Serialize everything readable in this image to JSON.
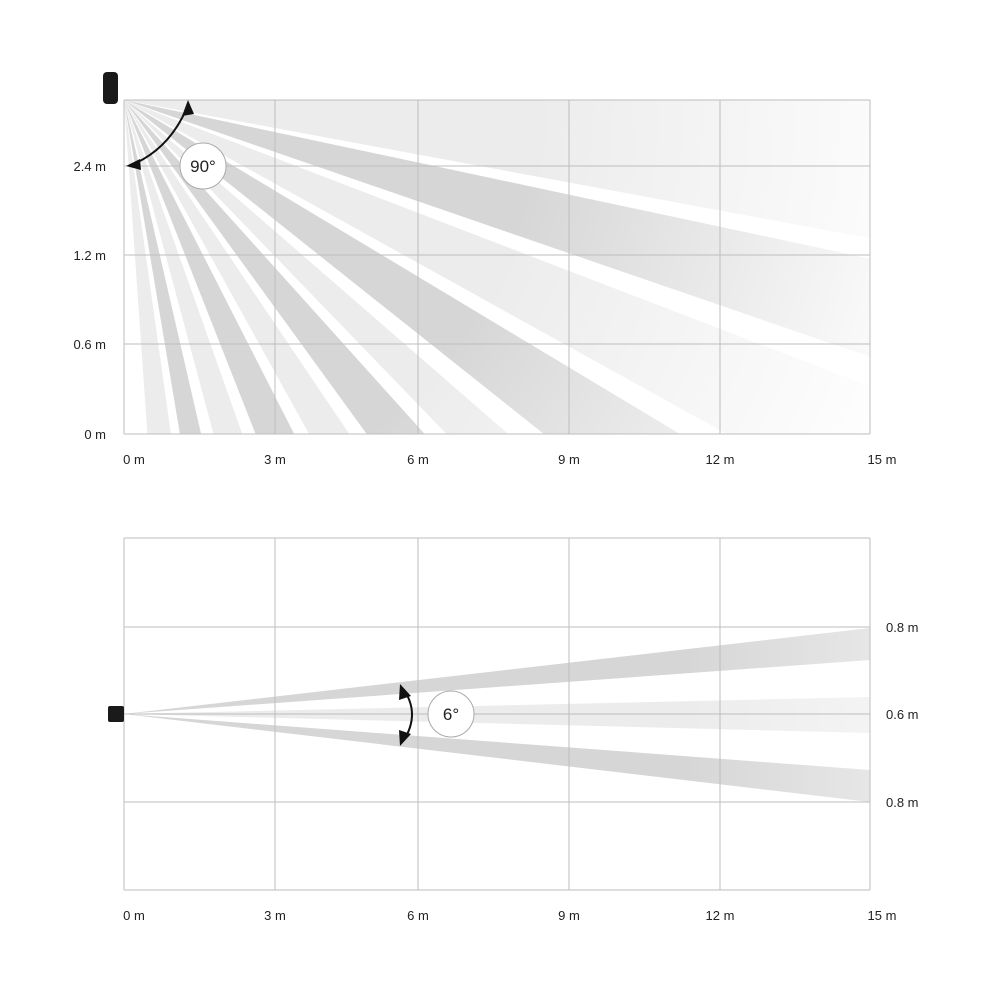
{
  "side_view": {
    "x_ticks": [
      "0 m",
      "3 m",
      "6 m",
      "9 m",
      "12 m",
      "15 m"
    ],
    "y_ticks": [
      "2.4 m",
      "1.2 m",
      "0.6 m",
      "0 m"
    ],
    "angle_label": "90°",
    "device_icon": "sensor-side-icon"
  },
  "top_view": {
    "x_ticks": [
      "0 m",
      "3 m",
      "6 m",
      "9 m",
      "12 m",
      "15 m"
    ],
    "y_ticks": [
      "0.8 m",
      "0.6 m",
      "0.8 m"
    ],
    "angle_label": "6°",
    "device_icon": "sensor-top-icon"
  },
  "colors": {
    "grid": "#bdbdbd",
    "beam_dark": "#d6d6d6",
    "beam_light": "#ececec",
    "device": "#1a1a1a"
  }
}
